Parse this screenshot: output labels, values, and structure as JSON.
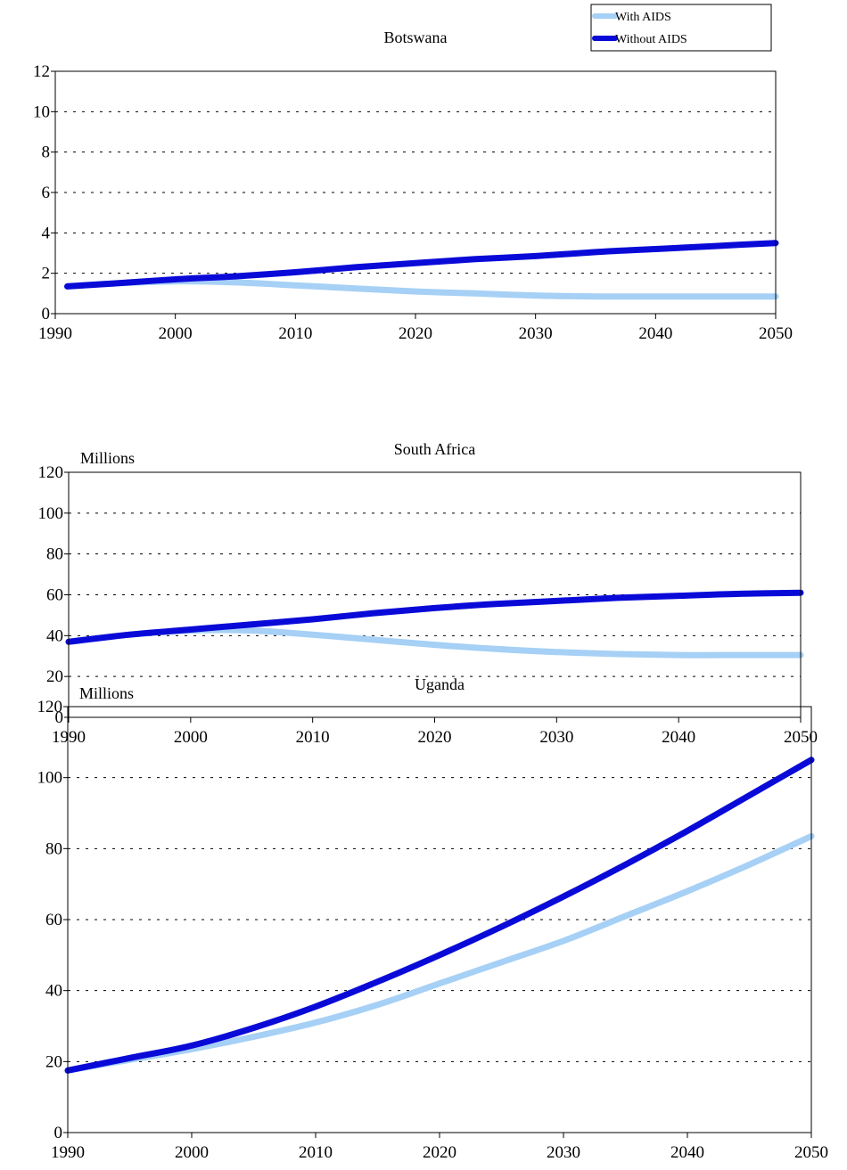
{
  "legend": [
    {
      "name": "With AIDS",
      "color": "#a6d0f5"
    },
    {
      "name": "Without AIDS",
      "color": "#0a0ad8"
    }
  ],
  "chart_data": [
    {
      "type": "line",
      "title": "Botswana",
      "ylabel": "",
      "xlabel": "",
      "xlim": [
        1990,
        2050
      ],
      "ylim": [
        0,
        12
      ],
      "xticks": [
        "1990",
        "2000",
        "2010",
        "2020",
        "2030",
        "2040",
        "2050"
      ],
      "yticks": [
        "0",
        "2",
        "4",
        "6",
        "8",
        "10",
        "12"
      ],
      "grid": true,
      "series": [
        {
          "name": "With AIDS",
          "x": [
            1991,
            1995,
            2000,
            2005,
            2010,
            2015,
            2020,
            2025,
            2030,
            2035,
            2040,
            2045,
            2050
          ],
          "values": [
            1.35,
            1.5,
            1.6,
            1.55,
            1.4,
            1.25,
            1.1,
            1.0,
            0.9,
            0.85,
            0.85,
            0.85,
            0.85
          ]
        },
        {
          "name": "Without AIDS",
          "x": [
            1991,
            1995,
            2000,
            2005,
            2010,
            2015,
            2020,
            2025,
            2030,
            2035,
            2040,
            2045,
            2050
          ],
          "values": [
            1.35,
            1.5,
            1.7,
            1.85,
            2.05,
            2.3,
            2.5,
            2.7,
            2.85,
            3.05,
            3.2,
            3.35,
            3.5
          ]
        }
      ]
    },
    {
      "type": "line",
      "title": "South Africa",
      "ylabel": "Millions",
      "xlabel": "",
      "xlim": [
        1990,
        2050
      ],
      "ylim": [
        0,
        120
      ],
      "xticks": [
        "1990",
        "2000",
        "2010",
        "2020",
        "2030",
        "2040",
        "2050"
      ],
      "yticks": [
        "0",
        "20",
        "40",
        "60",
        "80",
        "100",
        "120"
      ],
      "grid": true,
      "series": [
        {
          "name": "With AIDS",
          "x": [
            1990,
            1995,
            2000,
            2005,
            2010,
            2015,
            2020,
            2025,
            2030,
            2035,
            2040,
            2045,
            2050
          ],
          "values": [
            37,
            40.5,
            42.5,
            42.5,
            40.5,
            38,
            35.5,
            33.5,
            32,
            31,
            30.5,
            30.5,
            30.5
          ]
        },
        {
          "name": "Without AIDS",
          "x": [
            1990,
            1995,
            2000,
            2005,
            2010,
            2015,
            2020,
            2025,
            2030,
            2035,
            2040,
            2045,
            2050
          ],
          "values": [
            37,
            40.5,
            43,
            45.5,
            48,
            51,
            53.5,
            55.5,
            57,
            58.5,
            59.5,
            60.5,
            61
          ]
        }
      ]
    },
    {
      "type": "line",
      "title": "Uganda",
      "ylabel": "Millions",
      "xlabel": "",
      "xlim": [
        1990,
        2050
      ],
      "ylim": [
        0,
        120
      ],
      "xticks": [
        "1990",
        "2000",
        "2010",
        "2020",
        "2030",
        "2040",
        "2050"
      ],
      "yticks": [
        "0",
        "20",
        "40",
        "60",
        "80",
        "100",
        "120"
      ],
      "grid": true,
      "series": [
        {
          "name": "With AIDS",
          "x": [
            1990,
            1995,
            2000,
            2005,
            2010,
            2015,
            2020,
            2025,
            2030,
            2035,
            2040,
            2045,
            2050
          ],
          "values": [
            17.5,
            20.5,
            23.5,
            27,
            31,
            36,
            42,
            48,
            54,
            61,
            68,
            75.5,
            83.5
          ]
        },
        {
          "name": "Without AIDS",
          "x": [
            1990,
            1995,
            2000,
            2005,
            2010,
            2015,
            2020,
            2025,
            2030,
            2035,
            2040,
            2045,
            2050
          ],
          "values": [
            17.5,
            21,
            24.5,
            29.5,
            35.5,
            42.5,
            50,
            58,
            66.5,
            75.5,
            85,
            95,
            105
          ]
        }
      ]
    }
  ]
}
